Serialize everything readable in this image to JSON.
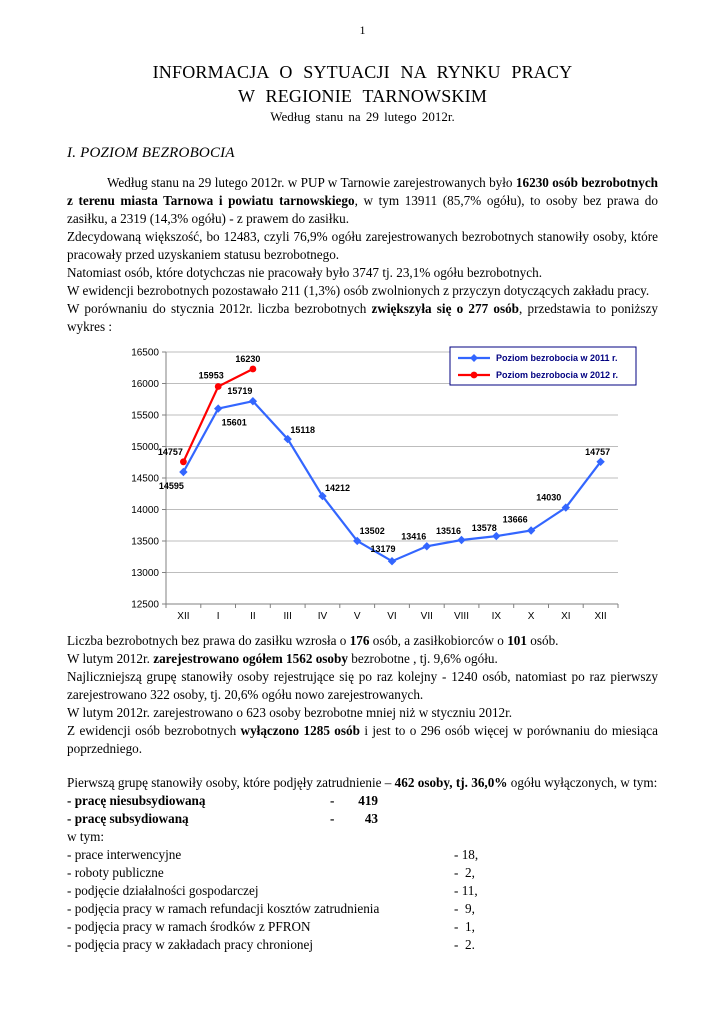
{
  "page_number": "1",
  "header": {
    "title_line1": "INFORMACJA O SYTUACJI NA RYNKU PRACY",
    "title_line2": "W REGIONIE TARNOWSKIM",
    "subtitle": "Według stanu na 29 lutego 2012r."
  },
  "section": {
    "heading": "I. POZIOM BEZROBOCIA"
  },
  "intro_paragraphs": [
    {
      "indent": true,
      "segs": [
        {
          "t": "Według stanu na 29 lutego 2012r. w PUP w Tarnowie zarejestrowanych było "
        },
        {
          "t": "16230 osób bezrobotnych z terenu miasta Tarnowa i powiatu tarnowskiego",
          "b": true
        },
        {
          "t": ", w tym 13911 (85,7% ogółu), to osoby bez prawa do zasiłku, a 2319 (14,3% ogółu) - z prawem do zasiłku."
        }
      ]
    },
    {
      "segs": [
        {
          "t": "Zdecydowaną większość, bo 12483, czyli 76,9% ogółu zarejestrowanych bezrobotnych stanowiły osoby, które pracowały przed uzyskaniem statusu bezrobotnego."
        }
      ]
    },
    {
      "segs": [
        {
          "t": "Natomiast osób, które dotychczas nie pracowały było 3747 tj. 23,1% ogółu bezrobotnych."
        }
      ]
    },
    {
      "segs": [
        {
          "t": "W ewidencji bezrobotnych pozostawało 211 (1,3%) osób zwolnionych z przyczyn dotyczących zakładu pracy."
        }
      ]
    },
    {
      "segs": [
        {
          "t": "W porównaniu do stycznia 2012r. liczba bezrobotnych "
        },
        {
          "t": "zwiększyła się o 277 osób",
          "b": true
        },
        {
          "t": ", przedstawia to poniższy wykres :"
        }
      ]
    }
  ],
  "chart_data": {
    "type": "line",
    "categories": [
      "XII",
      "I",
      "II",
      "III",
      "IV",
      "V",
      "VI",
      "VII",
      "VIII",
      "IX",
      "X",
      "XI",
      "XII"
    ],
    "series": [
      {
        "name": "Poziom bezrobocia w 2011 r.",
        "color": "#3366FF",
        "marker": "diamond",
        "values": [
          14595,
          15601,
          15719,
          15118,
          14212,
          13502,
          13179,
          13416,
          13516,
          13578,
          13666,
          14030,
          14757
        ]
      },
      {
        "name": "Poziom bezrobocia w 2012 r.",
        "color": "#FF0000",
        "marker": "circle",
        "values": [
          14757,
          15953,
          16230
        ]
      }
    ],
    "ylim": [
      12500,
      16500
    ],
    "ytick_step": 500,
    "grid": true,
    "legend_position": "top-right",
    "title": "",
    "xlabel": "",
    "ylabel": ""
  },
  "after_chart_paragraphs": [
    {
      "segs": [
        {
          "t": "Liczba bezrobotnych bez prawa do zasiłku wzrosła o "
        },
        {
          "t": "176",
          "b": true
        },
        {
          "t": " osób, a zasiłkobiorców o "
        },
        {
          "t": "101",
          "b": true
        },
        {
          "t": " osób."
        }
      ]
    },
    {
      "segs": [
        {
          "t": "W lutym 2012r. "
        },
        {
          "t": "zarejestrowano ogółem 1562 osoby",
          "b": true
        },
        {
          "t": " bezrobotne , tj. 9,6% ogółu."
        }
      ]
    },
    {
      "segs": [
        {
          "t": "Najliczniejszą grupę stanowiły osoby rejestrujące się po raz kolejny - 1240 osób, natomiast po raz pierwszy zarejestrowano 322 osoby, tj. 20,6% ogółu nowo zarejestrowanych."
        }
      ]
    },
    {
      "segs": [
        {
          "t": "W lutym 2012r. zarejestrowano o 623 osoby bezrobotne mniej niż w styczniu 2012r."
        }
      ]
    },
    {
      "segs": [
        {
          "t": "Z ewidencji osób bezrobotnych "
        },
        {
          "t": "wyłączono 1285 osób",
          "b": true
        },
        {
          "t": " i jest to o 296 osób więcej w porównaniu do miesiąca poprzedniego."
        }
      ]
    }
  ],
  "employment": {
    "intro_paragraphs": [
      {
        "segs": [
          {
            "t": "Pierwszą grupę stanowiły osoby, które podjęły zatrudnienie – "
          },
          {
            "t": "462 osoby, tj. 36,0%",
            "b": true
          },
          {
            "t": " ogółu wyłączonych, w tym:"
          }
        ]
      }
    ],
    "bold_rows": [
      {
        "label": "- pracę niesubsydiowaną",
        "dash": "-",
        "value": "419"
      },
      {
        "label": "- pracę subsydiowaną",
        "dash": "-",
        "value": "43"
      }
    ],
    "w_tym": "w tym:",
    "detail_rows": [
      {
        "label": "- prace interwencyjne",
        "value": "- 18,"
      },
      {
        "label": "- roboty publiczne",
        "value": "-  2,"
      },
      {
        "label": "- podjęcie działalności gospodarczej",
        "value": "- 11,"
      },
      {
        "label": "- podjęcia pracy w ramach refundacji kosztów zatrudnienia",
        "value": "-  9,"
      },
      {
        "label": "- podjęcia pracy w ramach środków z PFRON",
        "value": "-  1,"
      },
      {
        "label": "- podjęcia pracy w zakładach pracy chronionej",
        "value": "-  2."
      }
    ]
  }
}
